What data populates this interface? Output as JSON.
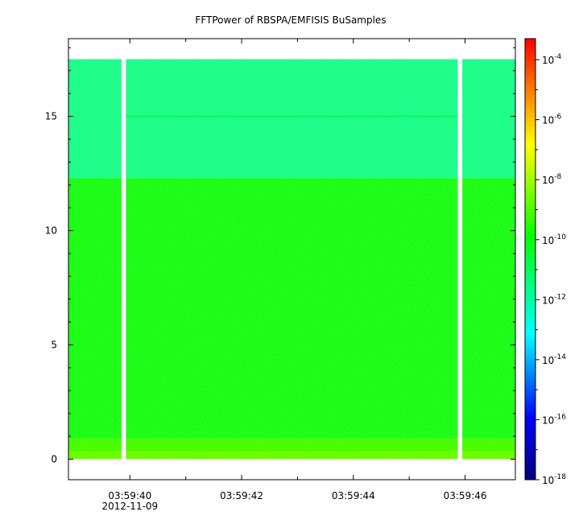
{
  "chart_data": {
    "type": "heatmap",
    "title": "FFTPower of RBSPA/EMFISIS  BuSamples",
    "xlabel": "",
    "ylabel": "",
    "x_ticks": [
      "03:59:40",
      "03:59:42",
      "03:59:44",
      "03:59:46"
    ],
    "x_tick_values": [
      40,
      42,
      44,
      46
    ],
    "x_minor_ticks": [
      41,
      43,
      45,
      47
    ],
    "x_date_label": "2012-11-09",
    "xlim": [
      38.9,
      46.9
    ],
    "y_ticks": [
      "0",
      "5",
      "10",
      "15"
    ],
    "y_tick_values": [
      0,
      5,
      10,
      15
    ],
    "ylim": [
      -0.9,
      18.4
    ],
    "data_y_range": [
      0,
      17.5
    ],
    "data_gaps": [
      {
        "x_start": 39.85,
        "x_end": 39.93
      },
      {
        "x_start": 45.87,
        "x_end": 45.95
      }
    ],
    "bands": [
      {
        "y_start": 0.0,
        "y_end": 0.35,
        "log_power": -8.8
      },
      {
        "y_start": 0.35,
        "y_end": 0.9,
        "log_power": -9.3
      },
      {
        "y_start": 0.9,
        "y_end": 12.3,
        "log_power": -10.3
      },
      {
        "y_start": 12.3,
        "y_end": 17.5,
        "log_power": -12.0
      }
    ],
    "spectral_line": {
      "y": 15.0,
      "log_power": -11.0
    },
    "colorbar": {
      "scale": "log",
      "range": [
        -18,
        -3.3
      ],
      "tick_exponents": [
        -18,
        -16,
        -14,
        -12,
        -10,
        -8,
        -6,
        -4
      ],
      "tick_base": "10",
      "colors": [
        "#00007f",
        "#0000ff",
        "#00ffff",
        "#00ff00",
        "#ffff00",
        "#ff0000"
      ]
    },
    "grid": false,
    "legend": "colorbar-right"
  }
}
